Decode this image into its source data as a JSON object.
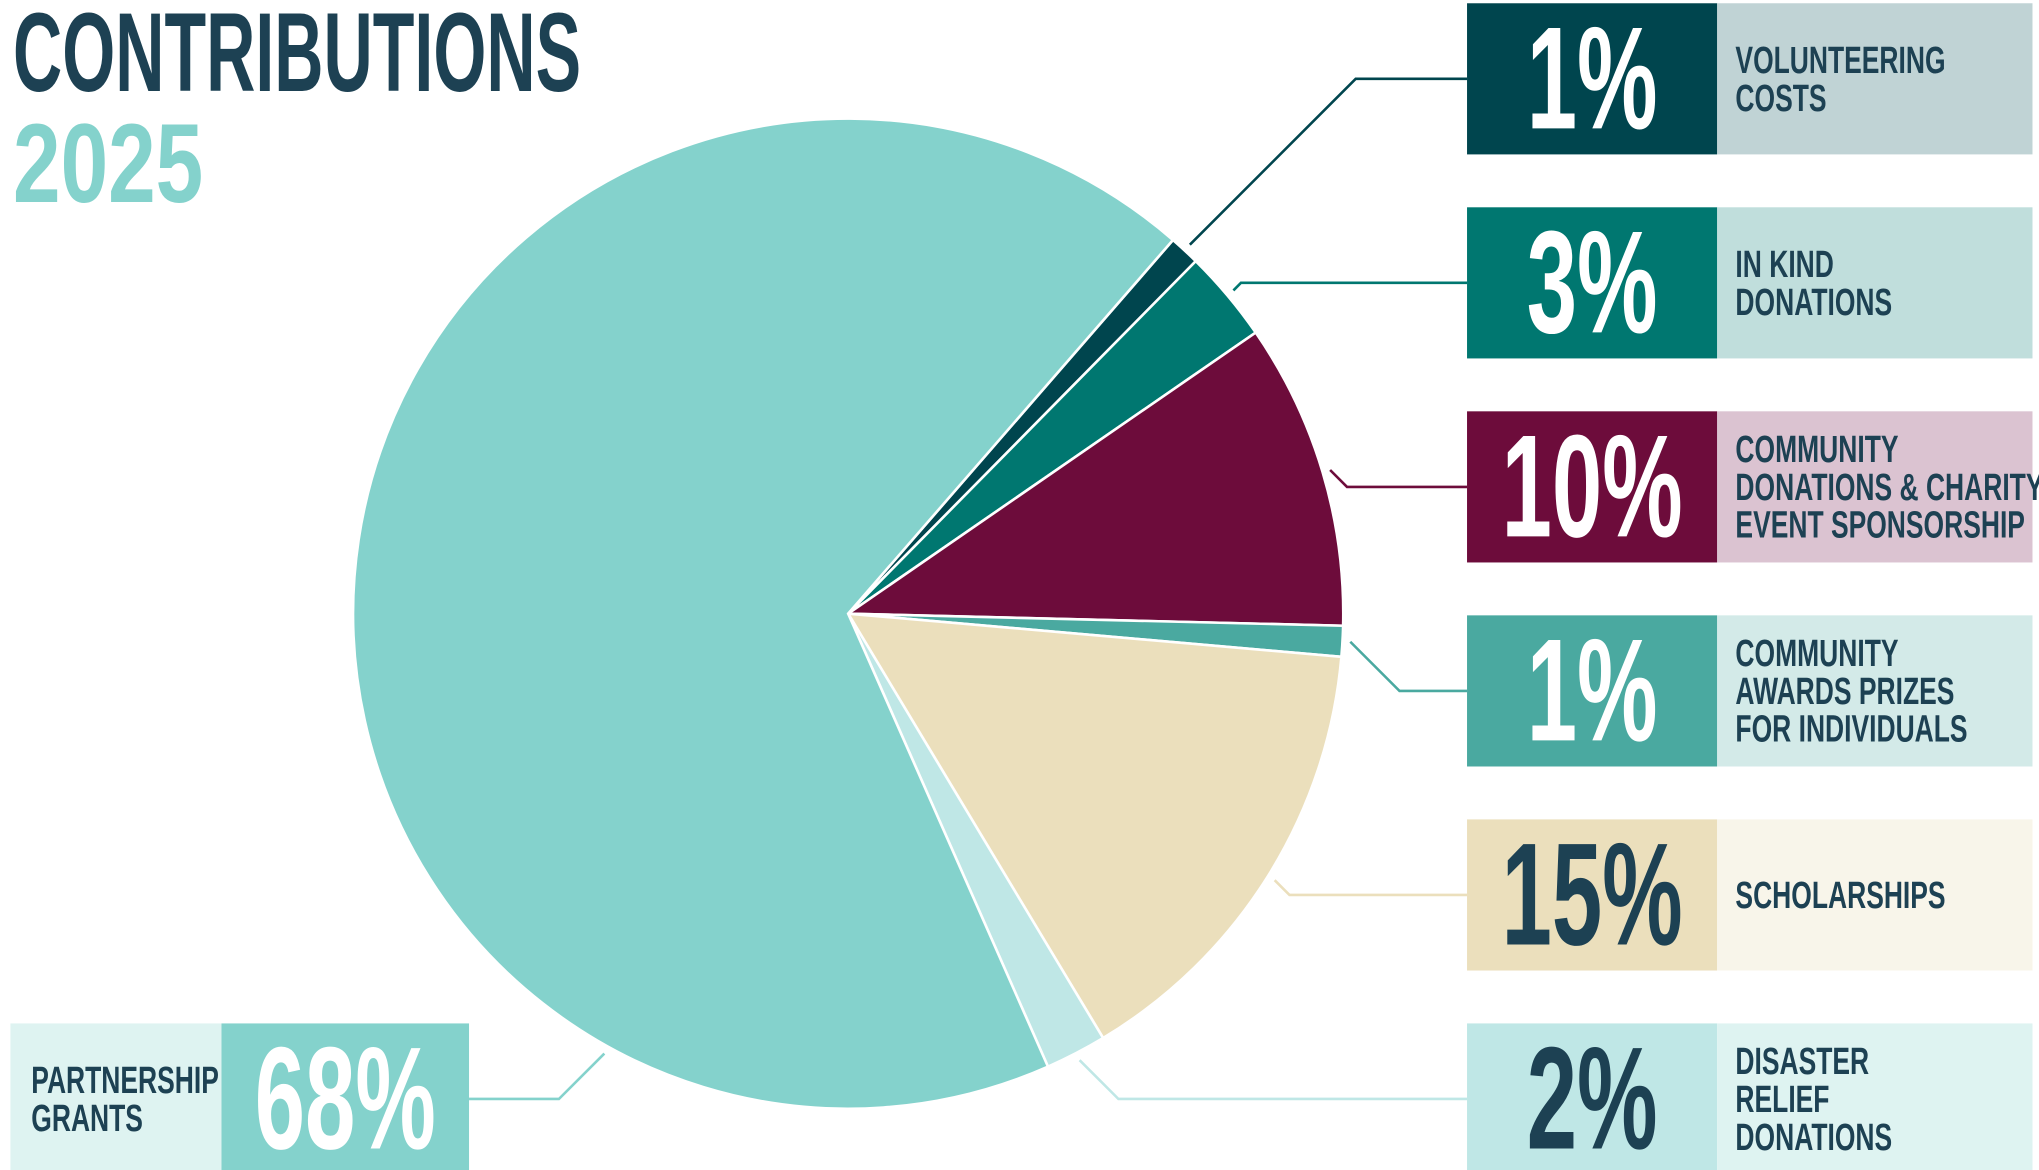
{
  "chart_data": {
    "type": "pie",
    "title": "CONTRIBUTIONS",
    "subtitle": "2025",
    "categories": [
      [
        "VOLUNTEERING",
        "COSTS"
      ],
      [
        "IN KIND",
        "DONATIONS"
      ],
      [
        "COMMUNITY",
        "DONATIONS & CHARITY",
        "EVENT SPONSORSHIP"
      ],
      [
        "COMMUNITY",
        "AWARDS PRIZES",
        "FOR INDIVIDUALS"
      ],
      [
        "SCHOLARSHIPS"
      ],
      [
        "DISASTER",
        "RELIEF",
        "DONATIONS"
      ],
      [
        "PARTNERSHIP",
        "GRANTS"
      ]
    ],
    "values": [
      1,
      3,
      10,
      1,
      15,
      2,
      68
    ],
    "value_labels": [
      "1%",
      "3%",
      "10%",
      "1%",
      "15%",
      "2%",
      "68%"
    ],
    "colors": [
      "#00454e",
      "#007770",
      "#6d0c3b",
      "#4aa9a0",
      "#ebdfbc",
      "#bfe7e6",
      "#84d2cc"
    ],
    "label_colors": [
      "#c0d3d5",
      "#c0dedc",
      "#dbc3d1",
      "#d3eae8",
      "#f8f5ea",
      "#def3f1",
      "#def3f1"
    ]
  }
}
